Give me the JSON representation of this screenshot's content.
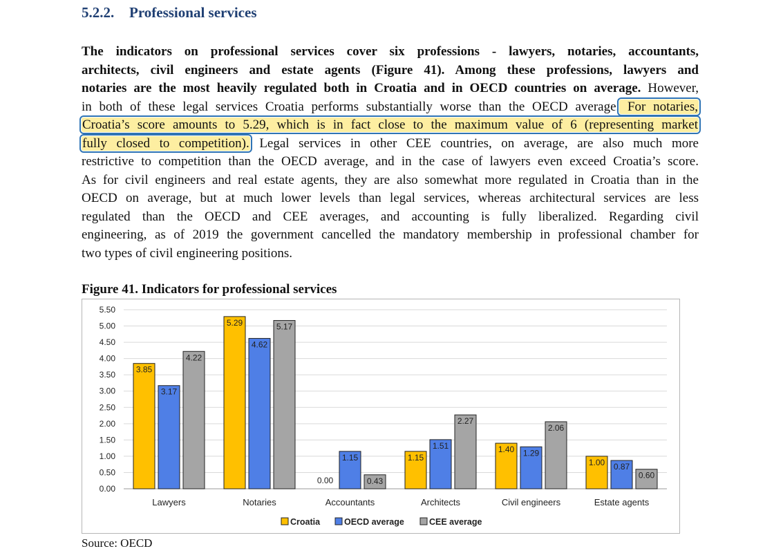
{
  "heading": {
    "number": "5.2.2.",
    "title": "Professional services"
  },
  "paragraph": {
    "lines": [
      [
        {
          "t": "The indicators on professional services cover six professions - lawyers, notaries, accountants,",
          "s": "b"
        }
      ],
      [
        {
          "t": "architects, civil engineers and estate agents (Figure 41). Among these professions, lawyers and",
          "s": "b"
        }
      ],
      [
        {
          "t": "notaries are the most heavily regulated both in Croatia and in OECD countries on average.",
          "s": "b"
        },
        {
          "t": " However,",
          "s": ""
        }
      ],
      [
        {
          "t": "in both of these legal services Croatia performs substantially worse than the OECD average.",
          "s": ""
        },
        {
          "t": " For notaries,",
          "s": "hl"
        }
      ],
      [
        {
          "t": "Croatia’s score amounts to 5.29, which is in fact close to the maximum value of 6 (representing market",
          "s": "hl"
        }
      ],
      [
        {
          "t": "fully closed to competition).",
          "s": "hl"
        },
        {
          "t": " Legal services in other CEE countries, on average, are also much more",
          "s": ""
        }
      ],
      [
        {
          "t": "restrictive to competition than the OECD average, and in the case of lawyers even exceed Croatia’s score.",
          "s": ""
        }
      ],
      [
        {
          "t": "As for civil engineers and real estate agents, they are also somewhat more regulated in Croatia than in the",
          "s": ""
        }
      ],
      [
        {
          "t": "OECD on average, but at much lower levels than legal services, whereas architectural services are less",
          "s": ""
        }
      ],
      [
        {
          "t": "regulated than the OECD and CEE averages, and accounting is fully liberalized. Regarding civil",
          "s": ""
        }
      ],
      [
        {
          "t": "engineering, as of 2019 the government cancelled the mandatory membership in professional chamber for",
          "s": ""
        }
      ],
      [
        {
          "t": "two types of civil engineering positions.",
          "s": ""
        }
      ]
    ]
  },
  "figure": {
    "title": "Figure 41. Indicators for professional services"
  },
  "chart_data": {
    "type": "bar",
    "categories": [
      "Lawyers",
      "Notaries",
      "Accountants",
      "Architects",
      "Civil engineers",
      "Estate agents"
    ],
    "series": [
      {
        "name": "Croatia",
        "color": "#ffc000",
        "values": [
          3.85,
          5.29,
          0.0,
          1.15,
          1.4,
          1.0
        ]
      },
      {
        "name": "OECD average",
        "color": "#4f7fe6",
        "values": [
          3.17,
          4.62,
          1.15,
          1.51,
          1.29,
          0.87
        ]
      },
      {
        "name": "CEE average",
        "color": "#a5a5a5",
        "values": [
          4.22,
          5.17,
          0.43,
          2.27,
          2.06,
          0.6
        ]
      }
    ],
    "value_labels": [
      [
        "3.85",
        "5.29",
        "0.00",
        "1.15",
        "1.40",
        "1.00"
      ],
      [
        "3.17",
        "4.62",
        "1.15",
        "1.51",
        "1.29",
        "0.87"
      ],
      [
        "4.22",
        "5.17",
        "0.43",
        "2.27",
        "2.06",
        "0.60"
      ]
    ],
    "y_ticks": [
      "0.00",
      "0.50",
      "1.00",
      "1.50",
      "2.00",
      "2.50",
      "3.00",
      "3.50",
      "4.00",
      "4.50",
      "5.00",
      "5.50"
    ],
    "ylim": [
      0,
      5.5
    ],
    "grid": true,
    "legend_position": "bottom",
    "title": "",
    "xlabel": "",
    "ylabel": ""
  },
  "source": "Source: OECD"
}
